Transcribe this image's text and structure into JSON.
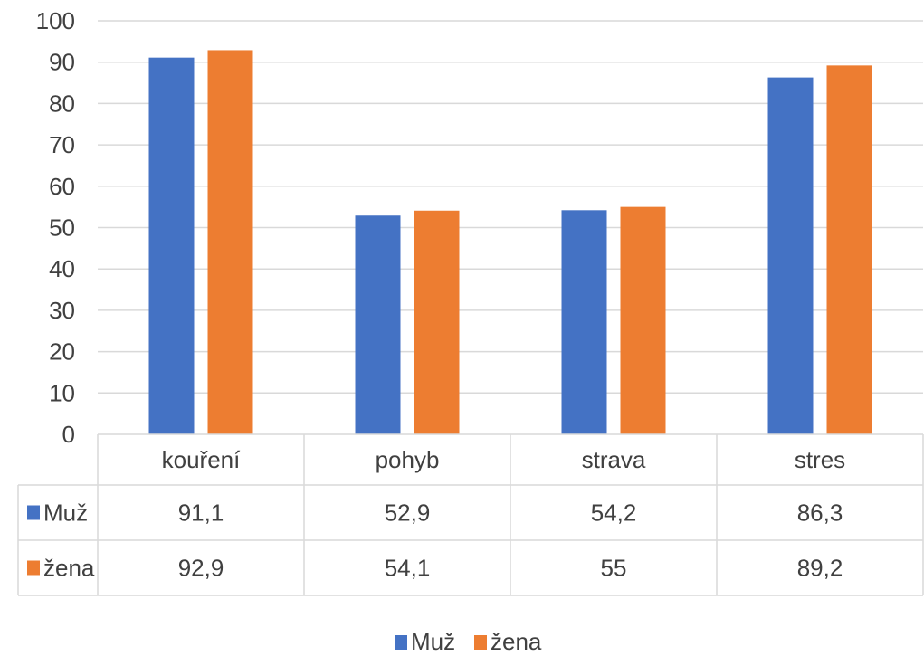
{
  "chart_data": {
    "type": "bar",
    "categories": [
      "kouření",
      "pohyb",
      "strava",
      "stres"
    ],
    "series": [
      {
        "name": "Muž",
        "values": [
          91.1,
          52.9,
          54.2,
          86.3
        ],
        "labels": [
          "91,1",
          "52,9",
          "54,2",
          "86,3"
        ],
        "color": "#4472C4"
      },
      {
        "name": "žena",
        "values": [
          92.9,
          54.1,
          55,
          89.2
        ],
        "labels": [
          "92,9",
          "54,1",
          "55",
          "89,2"
        ],
        "color": "#ED7D31"
      }
    ],
    "yticks": [
      "0",
      "10",
      "20",
      "30",
      "40",
      "50",
      "60",
      "70",
      "80",
      "90",
      "100"
    ],
    "ylim": [
      0,
      100
    ],
    "grid": true,
    "legend": "bottom",
    "data_table": true,
    "title": "",
    "xlabel": "",
    "ylabel": ""
  }
}
